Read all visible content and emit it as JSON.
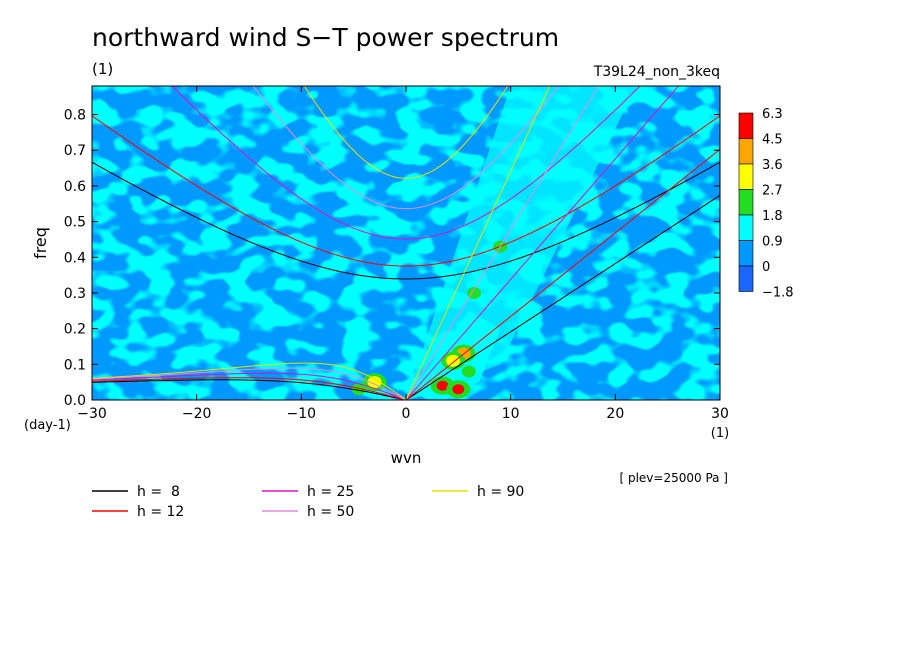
{
  "chart_data": {
    "type": "heatmap",
    "title": "northward wind S−T power spectrum",
    "subtitle": "(1)",
    "run_label": "T39L24_non_3keq",
    "xlabel": "wvn",
    "ylabel": "freq",
    "x_unit_label": "(1)",
    "y_unit_label": "(day-1)",
    "level_label": "[ plev=25000 Pa ]",
    "xlim": [
      -30,
      30
    ],
    "ylim": [
      0,
      0.88
    ],
    "x_ticks": [
      "−30",
      "−20",
      "−10",
      "0",
      "10",
      "20",
      "30"
    ],
    "x_tick_values": [
      -30,
      -20,
      -10,
      0,
      10,
      20,
      30
    ],
    "y_ticks": [
      "0.0",
      "0.1",
      "0.2",
      "0.3",
      "0.4",
      "0.5",
      "0.6",
      "0.7",
      "0.8"
    ],
    "y_tick_values": [
      0,
      0.1,
      0.2,
      0.3,
      0.4,
      0.5,
      0.6,
      0.7,
      0.8
    ],
    "colorbar": {
      "labels": [
        "6.3",
        "4.5",
        "3.6",
        "2.7",
        "1.8",
        "0.9",
        "0",
        "−1.8"
      ],
      "levels": [
        -1.8,
        0,
        0.9,
        1.8,
        2.7,
        3.6,
        4.5,
        6.3
      ],
      "colors": [
        "#1a66ff",
        "#0099ff",
        "#00ffff",
        "#22dd22",
        "#ffff00",
        "#ffa500",
        "#ff0000"
      ]
    },
    "series": [
      {
        "name": "h =  8",
        "h": 8,
        "color": "#000000"
      },
      {
        "name": "h = 12",
        "h": 12,
        "color": "#ff0000"
      },
      {
        "name": "h = 25",
        "h": 25,
        "color": "#e010c0"
      },
      {
        "name": "h = 50",
        "h": 50,
        "color": "#e08ce0"
      },
      {
        "name": "h = 90",
        "h": 90,
        "color": "#e8e000"
      }
    ],
    "hotspots": [
      {
        "wvn": 5.5,
        "freq": 0.13,
        "level": 3.6
      },
      {
        "wvn": 4.5,
        "freq": 0.11,
        "level": 2.7
      },
      {
        "wvn": 3.5,
        "freq": 0.04,
        "level": 6.3
      },
      {
        "wvn": 5,
        "freq": 0.03,
        "level": 4.5
      },
      {
        "wvn": -3,
        "freq": 0.05,
        "level": 2.7
      },
      {
        "wvn": -4.5,
        "freq": 0.03,
        "level": 1.8
      },
      {
        "wvn": 6,
        "freq": 0.08,
        "level": 1.8
      },
      {
        "wvn": 9,
        "freq": 0.43,
        "level": 1.8
      },
      {
        "wvn": 6.5,
        "freq": 0.3,
        "level": 1.8
      }
    ]
  }
}
